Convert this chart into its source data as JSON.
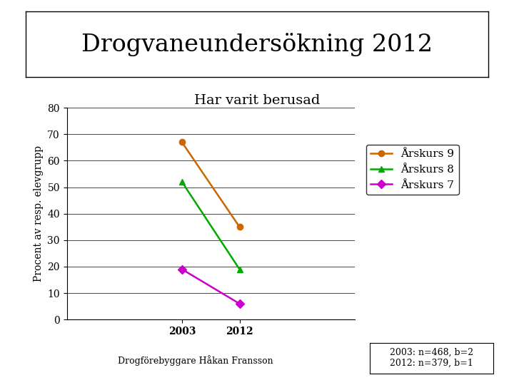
{
  "title": "Drogvaneundersökning 2012",
  "subtitle": "Har varit berusad",
  "ylabel": "Procent av resp. elevgrupp",
  "xlabel_ticks": [
    "2003",
    "2012"
  ],
  "x_values": [
    2003,
    2012
  ],
  "series": [
    {
      "label": "Årskurs 9",
      "values": [
        67,
        35
      ],
      "color": "#CC6600",
      "marker": "o"
    },
    {
      "label": "Årskurs 8",
      "values": [
        52,
        19
      ],
      "color": "#00AA00",
      "marker": "^"
    },
    {
      "label": "Årskurs 7",
      "values": [
        19,
        6
      ],
      "color": "#CC00CC",
      "marker": "D"
    }
  ],
  "ylim": [
    0,
    80
  ],
  "yticks": [
    0,
    10,
    20,
    30,
    40,
    50,
    60,
    70,
    80
  ],
  "footer_left": "Drogförebyggare Håkan Fransson",
  "footer_right": "2003: n=468, b=2\n2012: n=379, b=1",
  "background_color": "#ffffff",
  "title_fontsize": 24,
  "subtitle_fontsize": 14,
  "axis_fontsize": 10,
  "tick_fontsize": 10,
  "legend_fontsize": 11,
  "footer_fontsize": 9
}
